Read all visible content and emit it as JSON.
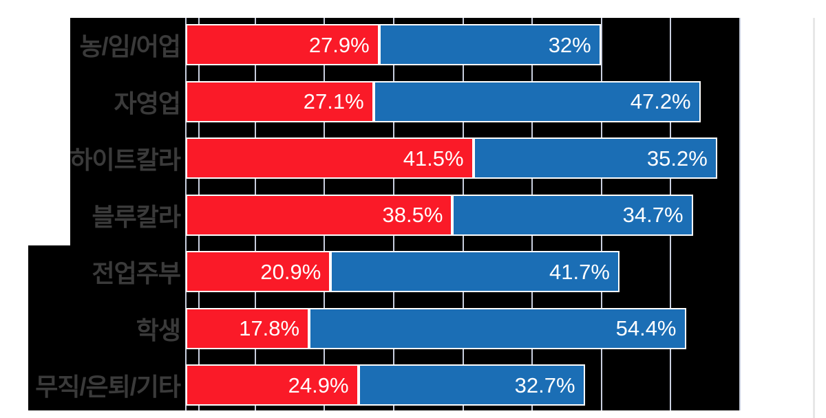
{
  "chart_data": {
    "type": "bar",
    "orientation": "horizontal-stacked",
    "title": "",
    "xlabel": "",
    "ylabel": "",
    "legend_position": "none",
    "categories": [
      "농/임/어업",
      "자영업",
      "하이트칼라",
      "블루칼라",
      "전업주부",
      "학생",
      "무직/은퇴/기타"
    ],
    "series": [
      {
        "name": "red-segment",
        "color": "#fa1a28",
        "values": [
          27.9,
          27.1,
          41.5,
          38.5,
          20.9,
          17.8,
          24.9
        ],
        "labels": [
          "27.9%",
          "27.1%",
          "41.5%",
          "38.5%",
          "20.9%",
          "17.8%",
          "24.9%"
        ]
      },
      {
        "name": "blue-segment",
        "color": "#1b6eb5",
        "values": [
          32,
          47.2,
          35.2,
          34.7,
          41.7,
          54.4,
          32.7
        ],
        "labels": [
          "32%",
          "47.2%",
          "35.2%",
          "34.7%",
          "41.7%",
          "54.4%",
          "32.7%"
        ]
      }
    ],
    "xlim": [
      0,
      80
    ],
    "grid": "on",
    "gridlines_pct": [
      0,
      1.9,
      10,
      20,
      30,
      40,
      50,
      60,
      70,
      80
    ],
    "colors": {
      "plot_background": "#000000",
      "gridline": "#c9cfdf",
      "bar_border": "#ffffff",
      "value_label": "#ffffff",
      "category_label": "#3a3a3a",
      "page_background": "#ffffff",
      "right_divider": "#e7e7e7"
    }
  }
}
